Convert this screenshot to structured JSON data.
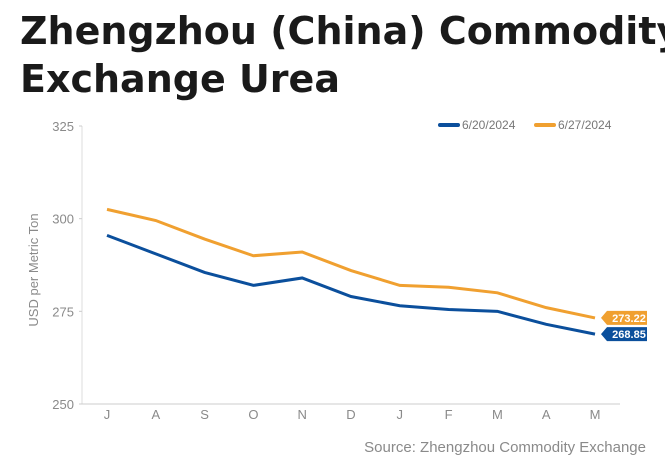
{
  "chart_data": {
    "type": "line",
    "title_lines": [
      "Zhengzhou (China) Commodity",
      "Exchange Urea"
    ],
    "y_label": "USD per Metric Ton",
    "source": "Source: Zhengzhou Commodity Exchange",
    "categories": [
      "J",
      "A",
      "S",
      "O",
      "N",
      "D",
      "J",
      "F",
      "M",
      "A",
      "M"
    ],
    "series": [
      {
        "name": "6/20/2024",
        "color": "#0b4f9c",
        "values": [
          295.5,
          290.5,
          285.5,
          282,
          284,
          279,
          276.5,
          275.5,
          275,
          271.5,
          268.85
        ],
        "value_labels": {
          "10": "268.85"
        }
      },
      {
        "name": "6/27/2024",
        "color": "#f0a030",
        "values": [
          302.5,
          299.5,
          294.5,
          290,
          291,
          286,
          282,
          281.5,
          280,
          276,
          273.22
        ],
        "value_labels": {
          "10": "273.22"
        }
      }
    ],
    "ylim": [
      250,
      325
    ],
    "yticks": [
      250,
      275,
      300,
      325
    ]
  }
}
